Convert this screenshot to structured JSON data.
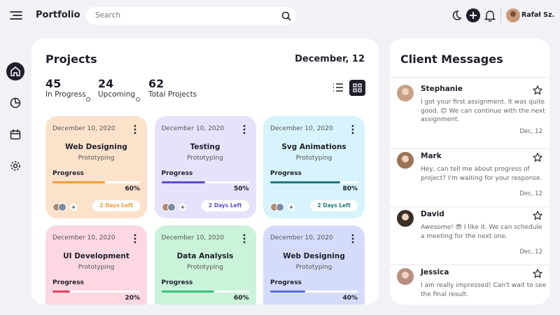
{
  "header": {
    "title": "Portfolio",
    "search_placeholder": "Search",
    "user_name": "Rafał Sz."
  },
  "projects": {
    "title": "Projects",
    "date": "December, 12",
    "stats": [
      {
        "value": 45,
        "label": "In Progress"
      },
      {
        "value": 24,
        "label": "Upcoming"
      },
      {
        "value": 62,
        "label": "Total Projects"
      }
    ],
    "cards": [
      {
        "date": "December 10, 2020",
        "title": "Web Designing",
        "subtitle": "Prototyping",
        "progress_label": "Progress",
        "progress": {
          "value": 60,
          "label": "60%"
        },
        "color": "#fde2cb",
        "bar_color": "#f39a3a",
        "days_left": "2 Days Left"
      },
      {
        "date": "December 10, 2020",
        "title": "Testing",
        "subtitle": "Prototyping",
        "progress_label": "Progress",
        "progress": {
          "value": 50,
          "label": "50%"
        },
        "color": "#e5e2fb",
        "bar_color": "#5a4fc6",
        "days_left": "2 Days Left"
      },
      {
        "date": "December 10, 2020",
        "title": "Svg Animations",
        "subtitle": "Prototyping",
        "progress_label": "Progress",
        "progress": {
          "value": 80,
          "label": "80%"
        },
        "color": "#d7f3fb",
        "bar_color": "#1d7a7a",
        "days_left": "2 Days Left"
      },
      {
        "date": "December 10, 2020",
        "title": "UI Development",
        "subtitle": "Prototyping",
        "progress_label": "Progress",
        "progress": {
          "value": 20,
          "label": "20%"
        },
        "color": "#fdd7e1",
        "bar_color": "#e6405e"
      },
      {
        "date": "December 10, 2020",
        "title": "Data Analysis",
        "subtitle": "Prototyping",
        "progress_label": "Progress",
        "progress": {
          "value": 60,
          "label": "60%"
        },
        "color": "#caf3da",
        "bar_color": "#35c57a"
      },
      {
        "date": "December 10, 2020",
        "title": "Web Designing",
        "subtitle": "Prototyping",
        "progress_label": "Progress",
        "progress": {
          "value": 40,
          "label": "40%"
        },
        "color": "#d5dcfb",
        "bar_color": "#5a6ee0"
      }
    ]
  },
  "messages": {
    "title": "Client Messages",
    "items": [
      {
        "name": "Stephanie",
        "text": "I got your first assignment. It was quite good. 😊 We can continue with the next assignment.",
        "date": "Dec, 12"
      },
      {
        "name": "Mark",
        "text": "Hey, can tell me about progress of project? I'm waiting for your response.",
        "date": "Dec, 12"
      },
      {
        "name": "David",
        "text": "Awesome! 😎 I like it. We can schedule a meeting for the next one.",
        "date": "Dec, 12"
      },
      {
        "name": "Jessica",
        "text": "I am really impressed! Can't wait to see the final result."
      }
    ]
  }
}
